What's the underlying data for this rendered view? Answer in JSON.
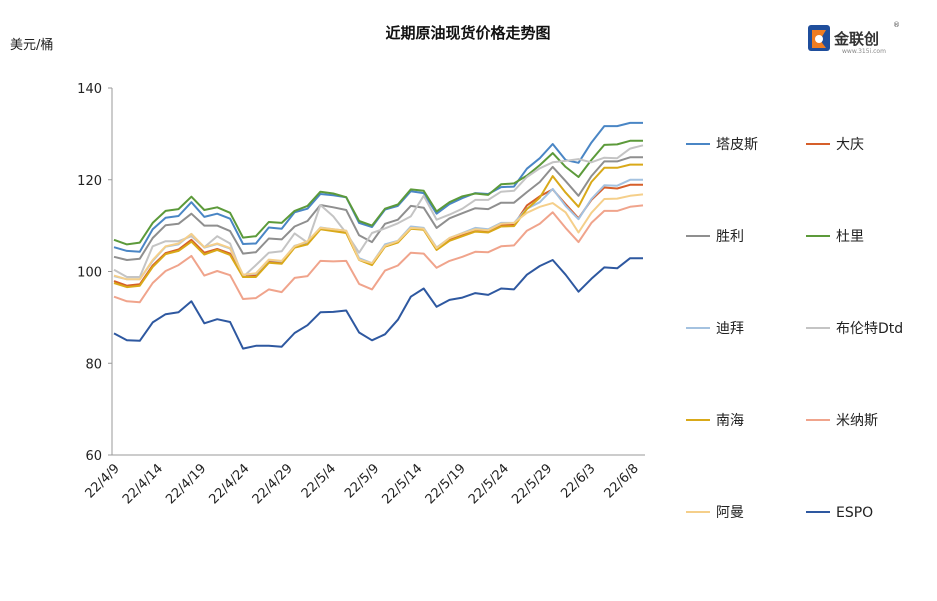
{
  "chart_data": {
    "type": "line",
    "title": "近期原油现货价格走势图",
    "ylabel": "美元/桶",
    "xlabel": "",
    "ylim": [
      60,
      140
    ],
    "yticks": [
      60,
      80,
      100,
      120,
      140
    ],
    "grid": false,
    "legend_position": "right",
    "xtick_labels": [
      "22/4/9",
      "22/4/14",
      "22/4/19",
      "22/4/24",
      "22/4/29",
      "22/5/4",
      "22/5/9",
      "22/5/14",
      "22/5/19",
      "22/5/24",
      "22/5/29",
      "22/6/3",
      "22/6/8"
    ],
    "dates": [
      "4/8",
      "4/11",
      "4/12",
      "4/13",
      "4/14",
      "4/15",
      "4/19",
      "4/20",
      "4/21",
      "4/22",
      "4/25",
      "4/26",
      "4/27",
      "4/28",
      "4/29",
      "5/4",
      "5/5",
      "5/6",
      "5/9",
      "5/10",
      "5/11",
      "5/12",
      "5/13",
      "5/16",
      "5/17",
      "5/18",
      "5/19",
      "5/20",
      "5/23",
      "5/24",
      "5/25",
      "5/26",
      "5/27",
      "5/30",
      "5/31",
      "6/1",
      "6/2",
      "6/3",
      "6/6",
      "6/7",
      "6/8",
      "6/9"
    ],
    "series": [
      {
        "name": "塔皮斯",
        "color": "#4a86c5",
        "values": [
          105.3,
          104.5,
          104.3,
          109.2,
          111.7,
          112.1,
          115.1,
          111.9,
          112.6,
          111.5,
          106.0,
          106.1,
          109.6,
          109.3,
          112.9,
          113.7,
          116.9,
          116.6,
          116.2,
          110.6,
          109.7,
          113.5,
          114.3,
          117.5,
          117.1,
          112.6,
          114.7,
          116.0,
          117.1,
          116.9,
          118.4,
          118.5,
          122.4,
          124.7,
          127.8,
          124.3,
          123.7,
          128.1,
          131.7,
          131.7,
          132.4,
          132.4
        ]
      },
      {
        "name": "大庆",
        "color": "#d65f2a",
        "values": [
          97.9,
          96.9,
          97.2,
          101.3,
          104.0,
          104.8,
          106.9,
          104.1,
          104.9,
          103.9,
          98.9,
          99.1,
          102.2,
          102.0,
          105.4,
          106.1,
          109.3,
          108.9,
          108.5,
          102.7,
          101.7,
          105.7,
          106.6,
          109.5,
          109.2,
          104.9,
          106.9,
          108.0,
          109.1,
          108.8,
          110.1,
          110.2,
          114.4,
          116.4,
          117.9,
          114.7,
          111.6,
          115.6,
          118.3,
          118.1,
          118.9,
          118.9
        ]
      },
      {
        "name": "胜利",
        "color": "#8f8f8f",
        "values": [
          103.2,
          102.5,
          102.8,
          107.3,
          110.1,
          110.4,
          112.6,
          110.0,
          110.0,
          108.8,
          103.9,
          104.2,
          107.2,
          107.0,
          109.8,
          111.0,
          114.5,
          114.0,
          113.4,
          107.9,
          106.4,
          110.4,
          111.3,
          114.3,
          113.9,
          109.5,
          111.6,
          112.7,
          113.8,
          113.6,
          115.0,
          115.0,
          117.3,
          119.5,
          122.8,
          119.7,
          116.5,
          120.8,
          124.0,
          124.0,
          124.9,
          124.9
        ]
      },
      {
        "name": "杜里",
        "color": "#5c9a3a",
        "values": [
          106.9,
          105.9,
          106.3,
          110.6,
          113.2,
          113.6,
          116.3,
          113.4,
          114.0,
          112.8,
          107.4,
          107.7,
          110.8,
          110.6,
          113.2,
          114.3,
          117.4,
          117.0,
          116.2,
          111.0,
          110.0,
          113.7,
          114.6,
          117.9,
          117.6,
          113.1,
          115.1,
          116.4,
          117.0,
          116.7,
          119.0,
          119.2,
          120.9,
          123.2,
          125.8,
          122.8,
          120.6,
          124.3,
          127.6,
          127.7,
          128.5,
          128.5
        ]
      },
      {
        "name": "迪拜",
        "color": "#a4c2e0",
        "values": [
          99.0,
          98.3,
          98.3,
          102.3,
          105.4,
          105.9,
          108.2,
          105.2,
          106.0,
          105.0,
          99.3,
          99.5,
          102.5,
          102.2,
          105.6,
          106.4,
          109.6,
          109.2,
          108.9,
          102.9,
          101.8,
          105.9,
          106.7,
          109.8,
          109.5,
          105.2,
          107.3,
          108.4,
          109.5,
          109.2,
          110.6,
          110.6,
          113.7,
          115.1,
          118.0,
          114.3,
          111.4,
          115.8,
          118.8,
          118.7,
          120.0,
          120.0
        ]
      },
      {
        "name": "布伦特Dtd",
        "color": "#c4c4c4",
        "values": [
          100.4,
          98.8,
          98.8,
          105.5,
          106.6,
          106.6,
          107.7,
          105.3,
          107.7,
          106.1,
          98.8,
          101.4,
          104.1,
          104.4,
          108.3,
          106.3,
          114.5,
          112.0,
          108.4,
          104.1,
          108.4,
          109.4,
          110.5,
          112.0,
          116.5,
          111.3,
          112.4,
          113.7,
          115.6,
          115.6,
          117.4,
          117.6,
          120.6,
          122.5,
          123.8,
          124.1,
          124.5,
          123.8,
          124.8,
          124.7,
          126.8,
          127.5
        ]
      },
      {
        "name": "南海",
        "color": "#d9a919",
        "values": [
          97.5,
          96.6,
          96.9,
          101.0,
          103.8,
          104.5,
          106.5,
          103.7,
          104.7,
          103.6,
          98.8,
          98.8,
          101.9,
          101.7,
          105.2,
          105.9,
          109.2,
          108.8,
          108.4,
          102.5,
          101.4,
          105.4,
          106.3,
          109.3,
          109.1,
          104.7,
          106.7,
          107.7,
          108.7,
          108.5,
          109.8,
          109.9,
          113.6,
          116.1,
          120.8,
          117.2,
          114.1,
          119.5,
          122.6,
          122.6,
          123.3,
          123.3
        ]
      },
      {
        "name": "米纳斯",
        "color": "#f0a48c",
        "values": [
          94.5,
          93.5,
          93.3,
          97.5,
          100.1,
          101.4,
          103.4,
          99.1,
          100.1,
          99.2,
          94.0,
          94.2,
          96.1,
          95.5,
          98.6,
          99.0,
          102.3,
          102.2,
          102.3,
          97.3,
          96.1,
          100.2,
          101.3,
          104.1,
          103.9,
          100.8,
          102.3,
          103.2,
          104.3,
          104.2,
          105.5,
          105.7,
          108.9,
          110.4,
          112.9,
          109.5,
          106.4,
          110.6,
          113.2,
          113.2,
          114.1,
          114.4
        ]
      },
      {
        "name": "阿曼",
        "color": "#f5cf8a",
        "values": [
          99.1,
          98.3,
          98.3,
          102.5,
          105.5,
          106.1,
          108.2,
          105.3,
          106.1,
          105.1,
          99.3,
          99.6,
          102.6,
          102.3,
          105.5,
          106.6,
          109.5,
          109.2,
          108.9,
          102.6,
          101.8,
          105.6,
          106.6,
          109.5,
          109.3,
          105.1,
          107.3,
          108.3,
          109.2,
          109.0,
          110.4,
          110.6,
          112.8,
          114.1,
          114.9,
          112.9,
          108.5,
          112.8,
          115.8,
          115.9,
          116.5,
          116.8
        ]
      },
      {
        "name": "ESPO",
        "color": "#2e58a0",
        "values": [
          86.5,
          85.0,
          84.9,
          88.9,
          90.7,
          91.1,
          93.5,
          88.7,
          89.6,
          89.0,
          83.2,
          83.8,
          83.8,
          83.6,
          86.6,
          88.3,
          91.1,
          91.2,
          91.5,
          86.7,
          85.0,
          86.3,
          89.5,
          94.5,
          96.3,
          92.3,
          93.8,
          94.3,
          95.3,
          94.9,
          96.3,
          96.1,
          99.3,
          101.2,
          102.5,
          99.3,
          95.6,
          98.4,
          100.9,
          100.7,
          102.9,
          102.9
        ]
      }
    ]
  },
  "logo": {
    "text": "金联创",
    "sub": "www.315i.com",
    "mark": "®"
  }
}
